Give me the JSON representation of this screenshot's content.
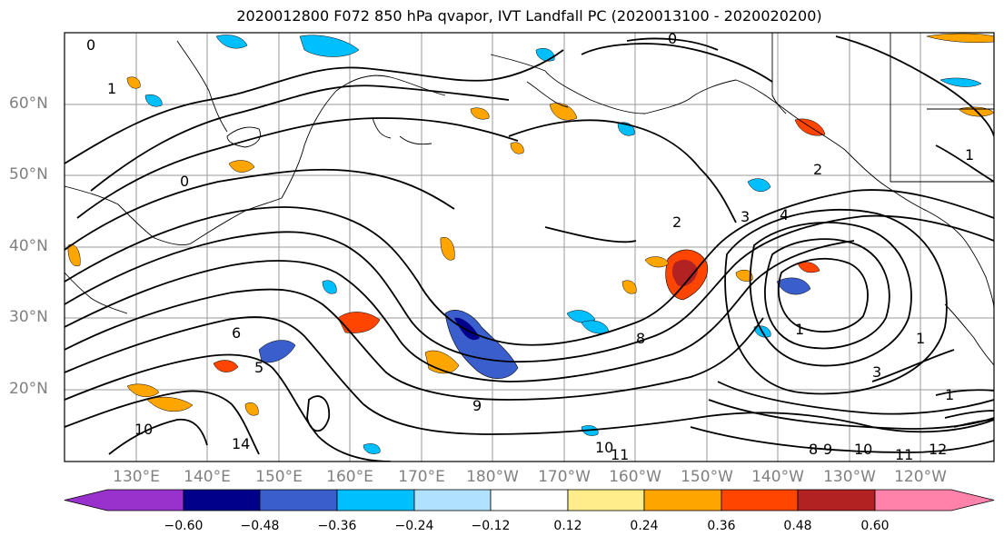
{
  "title": "2020012800 F072 850 hPa qvapor, IVT Landfall PC (2020013100 - 2020020200)",
  "lat_labels": [
    "60°N",
    "50°N",
    "40°N",
    "30°N",
    "20°N"
  ],
  "lon_labels": [
    "130°E",
    "140°E",
    "150°E",
    "160°E",
    "170°E",
    "180°W",
    "170°W",
    "160°W",
    "150°W",
    "140°W",
    "130°W",
    "120°W"
  ],
  "colorbar": {
    "ticks": [
      "−0.60",
      "−0.48",
      "−0.36",
      "−0.24",
      "−0.12",
      "0.12",
      "0.24",
      "0.36",
      "0.48",
      "0.60"
    ],
    "colors": [
      "#9932CC",
      "#00008B",
      "#3A5FCD",
      "#00BFFF",
      "#B0E2FF",
      "#FFFFFF",
      "#FFEC8B",
      "#FFA500",
      "#FF4500",
      "#B22222",
      "#FF82AB"
    ]
  },
  "contour_labels": [
    "0",
    "0",
    "1",
    "1",
    "2",
    "2",
    "3",
    "4",
    "6",
    "5",
    "8",
    "9",
    "10",
    "10",
    "10",
    "11",
    "11",
    "12",
    "14",
    "1",
    "1",
    "3",
    "8",
    "9",
    "0",
    "1"
  ]
}
